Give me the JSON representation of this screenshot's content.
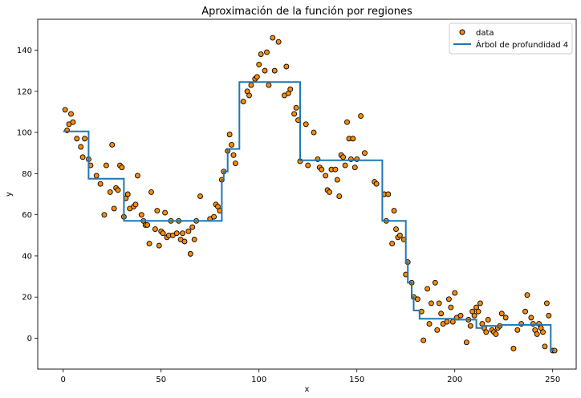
{
  "chart_data": {
    "type": "scatter",
    "title": "Aproximación de la función por regiones",
    "xlabel": "x",
    "ylabel": "y",
    "xlim": [
      -13,
      262
    ],
    "ylim": [
      -15,
      155
    ],
    "xticks": [
      0,
      50,
      100,
      150,
      200,
      250
    ],
    "yticks": [
      0,
      20,
      40,
      60,
      80,
      100,
      120,
      140
    ],
    "grid": false,
    "legend_position": "top-right",
    "colors": {
      "scatter": "#ff8c00",
      "line": "#1f77b4"
    },
    "series": [
      {
        "name": "data",
        "type": "scatter",
        "points": [
          [
            1,
            111
          ],
          [
            2,
            101
          ],
          [
            3,
            104
          ],
          [
            4,
            109
          ],
          [
            5,
            105
          ],
          [
            7,
            97
          ],
          [
            9,
            93
          ],
          [
            10,
            88
          ],
          [
            11,
            97
          ],
          [
            13,
            87
          ],
          [
            14,
            84
          ],
          [
            17,
            79
          ],
          [
            19,
            75
          ],
          [
            21,
            60
          ],
          [
            22,
            84
          ],
          [
            24,
            71
          ],
          [
            25,
            94
          ],
          [
            26,
            63
          ],
          [
            27,
            73
          ],
          [
            28,
            72
          ],
          [
            29,
            84
          ],
          [
            30,
            83
          ],
          [
            31,
            59
          ],
          [
            32,
            68
          ],
          [
            33,
            70
          ],
          [
            34,
            63
          ],
          [
            36,
            64
          ],
          [
            37,
            65
          ],
          [
            38,
            79
          ],
          [
            40,
            60
          ],
          [
            41,
            57
          ],
          [
            42,
            55
          ],
          [
            43,
            55
          ],
          [
            44,
            46
          ],
          [
            45,
            71
          ],
          [
            47,
            53
          ],
          [
            48,
            62
          ],
          [
            49,
            45
          ],
          [
            50,
            52
          ],
          [
            51,
            51
          ],
          [
            52,
            61
          ],
          [
            53,
            49
          ],
          [
            54,
            50
          ],
          [
            55,
            57
          ],
          [
            56,
            50
          ],
          [
            58,
            51
          ],
          [
            59,
            57
          ],
          [
            60,
            48
          ],
          [
            61,
            51
          ],
          [
            62,
            47
          ],
          [
            64,
            52
          ],
          [
            65,
            41
          ],
          [
            66,
            54
          ],
          [
            67,
            48
          ],
          [
            68,
            57
          ],
          [
            70,
            69
          ],
          [
            75,
            58
          ],
          [
            77,
            59
          ],
          [
            78,
            65
          ],
          [
            79,
            64
          ],
          [
            80,
            62
          ],
          [
            81,
            77
          ],
          [
            82,
            81
          ],
          [
            84,
            91
          ],
          [
            85,
            99
          ],
          [
            86,
            94
          ],
          [
            87,
            89
          ],
          [
            88,
            85
          ],
          [
            92,
            115
          ],
          [
            94,
            120
          ],
          [
            95,
            118
          ],
          [
            96,
            123
          ],
          [
            98,
            126
          ],
          [
            99,
            127
          ],
          [
            100,
            133
          ],
          [
            101,
            138
          ],
          [
            103,
            130
          ],
          [
            104,
            139
          ],
          [
            105,
            123
          ],
          [
            107,
            146
          ],
          [
            108,
            130
          ],
          [
            110,
            144
          ],
          [
            113,
            118
          ],
          [
            114,
            132
          ],
          [
            115,
            119
          ],
          [
            116,
            121
          ],
          [
            118,
            109
          ],
          [
            119,
            112
          ],
          [
            120,
            106
          ],
          [
            121,
            86
          ],
          [
            124,
            104
          ],
          [
            125,
            84
          ],
          [
            128,
            100
          ],
          [
            130,
            87
          ],
          [
            131,
            83
          ],
          [
            132,
            82
          ],
          [
            134,
            79
          ],
          [
            135,
            72
          ],
          [
            136,
            71
          ],
          [
            137,
            82
          ],
          [
            139,
            82
          ],
          [
            140,
            77
          ],
          [
            141,
            69
          ],
          [
            142,
            89
          ],
          [
            143,
            88
          ],
          [
            144,
            84
          ],
          [
            145,
            105
          ],
          [
            146,
            97
          ],
          [
            147,
            87
          ],
          [
            148,
            97
          ],
          [
            149,
            83
          ],
          [
            150,
            87
          ],
          [
            152,
            108
          ],
          [
            154,
            90
          ],
          [
            159,
            76
          ],
          [
            160,
            75
          ],
          [
            164,
            70
          ],
          [
            165,
            57
          ],
          [
            166,
            70
          ],
          [
            168,
            46
          ],
          [
            169,
            62
          ],
          [
            170,
            53
          ],
          [
            171,
            49
          ],
          [
            172,
            50
          ],
          [
            174,
            48
          ],
          [
            175,
            31
          ],
          [
            176,
            37
          ],
          [
            178,
            27
          ],
          [
            179,
            20
          ],
          [
            181,
            19
          ],
          [
            183,
            13
          ],
          [
            184,
            -1
          ],
          [
            186,
            24
          ],
          [
            187,
            7
          ],
          [
            188,
            17
          ],
          [
            190,
            27
          ],
          [
            191,
            4
          ],
          [
            192,
            17
          ],
          [
            193,
            12
          ],
          [
            194,
            7
          ],
          [
            196,
            8
          ],
          [
            197,
            19
          ],
          [
            198,
            15
          ],
          [
            199,
            8
          ],
          [
            200,
            22
          ],
          [
            201,
            10
          ],
          [
            203,
            11
          ],
          [
            206,
            -2
          ],
          [
            207,
            9
          ],
          [
            208,
            6
          ],
          [
            209,
            13
          ],
          [
            210,
            11
          ],
          [
            211,
            15
          ],
          [
            212,
            13
          ],
          [
            213,
            17
          ],
          [
            214,
            7
          ],
          [
            215,
            5
          ],
          [
            216,
            3
          ],
          [
            217,
            9
          ],
          [
            219,
            4
          ],
          [
            220,
            3
          ],
          [
            221,
            2
          ],
          [
            222,
            5
          ],
          [
            223,
            6
          ],
          [
            224,
            12
          ],
          [
            226,
            10
          ],
          [
            230,
            -5
          ],
          [
            232,
            4
          ],
          [
            234,
            7
          ],
          [
            236,
            13
          ],
          [
            237,
            21
          ],
          [
            239,
            10
          ],
          [
            240,
            7
          ],
          [
            241,
            4
          ],
          [
            242,
            2
          ],
          [
            243,
            7
          ],
          [
            244,
            5
          ],
          [
            245,
            3
          ],
          [
            246,
            -4
          ],
          [
            247,
            17
          ],
          [
            248,
            11
          ],
          [
            250,
            -6
          ],
          [
            251,
            -6
          ]
        ]
      },
      {
        "name": "Árbol de profundidad 4",
        "type": "line",
        "x": [
          0,
          13,
          13,
          31,
          31,
          81,
          81,
          82,
          82,
          84,
          84,
          90,
          90,
          121,
          121,
          163,
          163,
          175,
          175,
          176,
          176,
          178,
          178,
          179,
          179,
          182,
          182,
          200,
          200,
          211,
          211,
          214,
          214,
          224,
          224,
          249,
          249,
          251
        ],
        "y": [
          100.5,
          100.5,
          77.5,
          77.5,
          57,
          57,
          77,
          77,
          81,
          81,
          92,
          92,
          124.5,
          124.5,
          86.5,
          86.5,
          57,
          57,
          37,
          37,
          27,
          27,
          20,
          20,
          13.5,
          13.5,
          9.5,
          9.5,
          9,
          9,
          5,
          5,
          6,
          6,
          6.5,
          6.5,
          -5.5,
          -6
        ]
      }
    ]
  }
}
